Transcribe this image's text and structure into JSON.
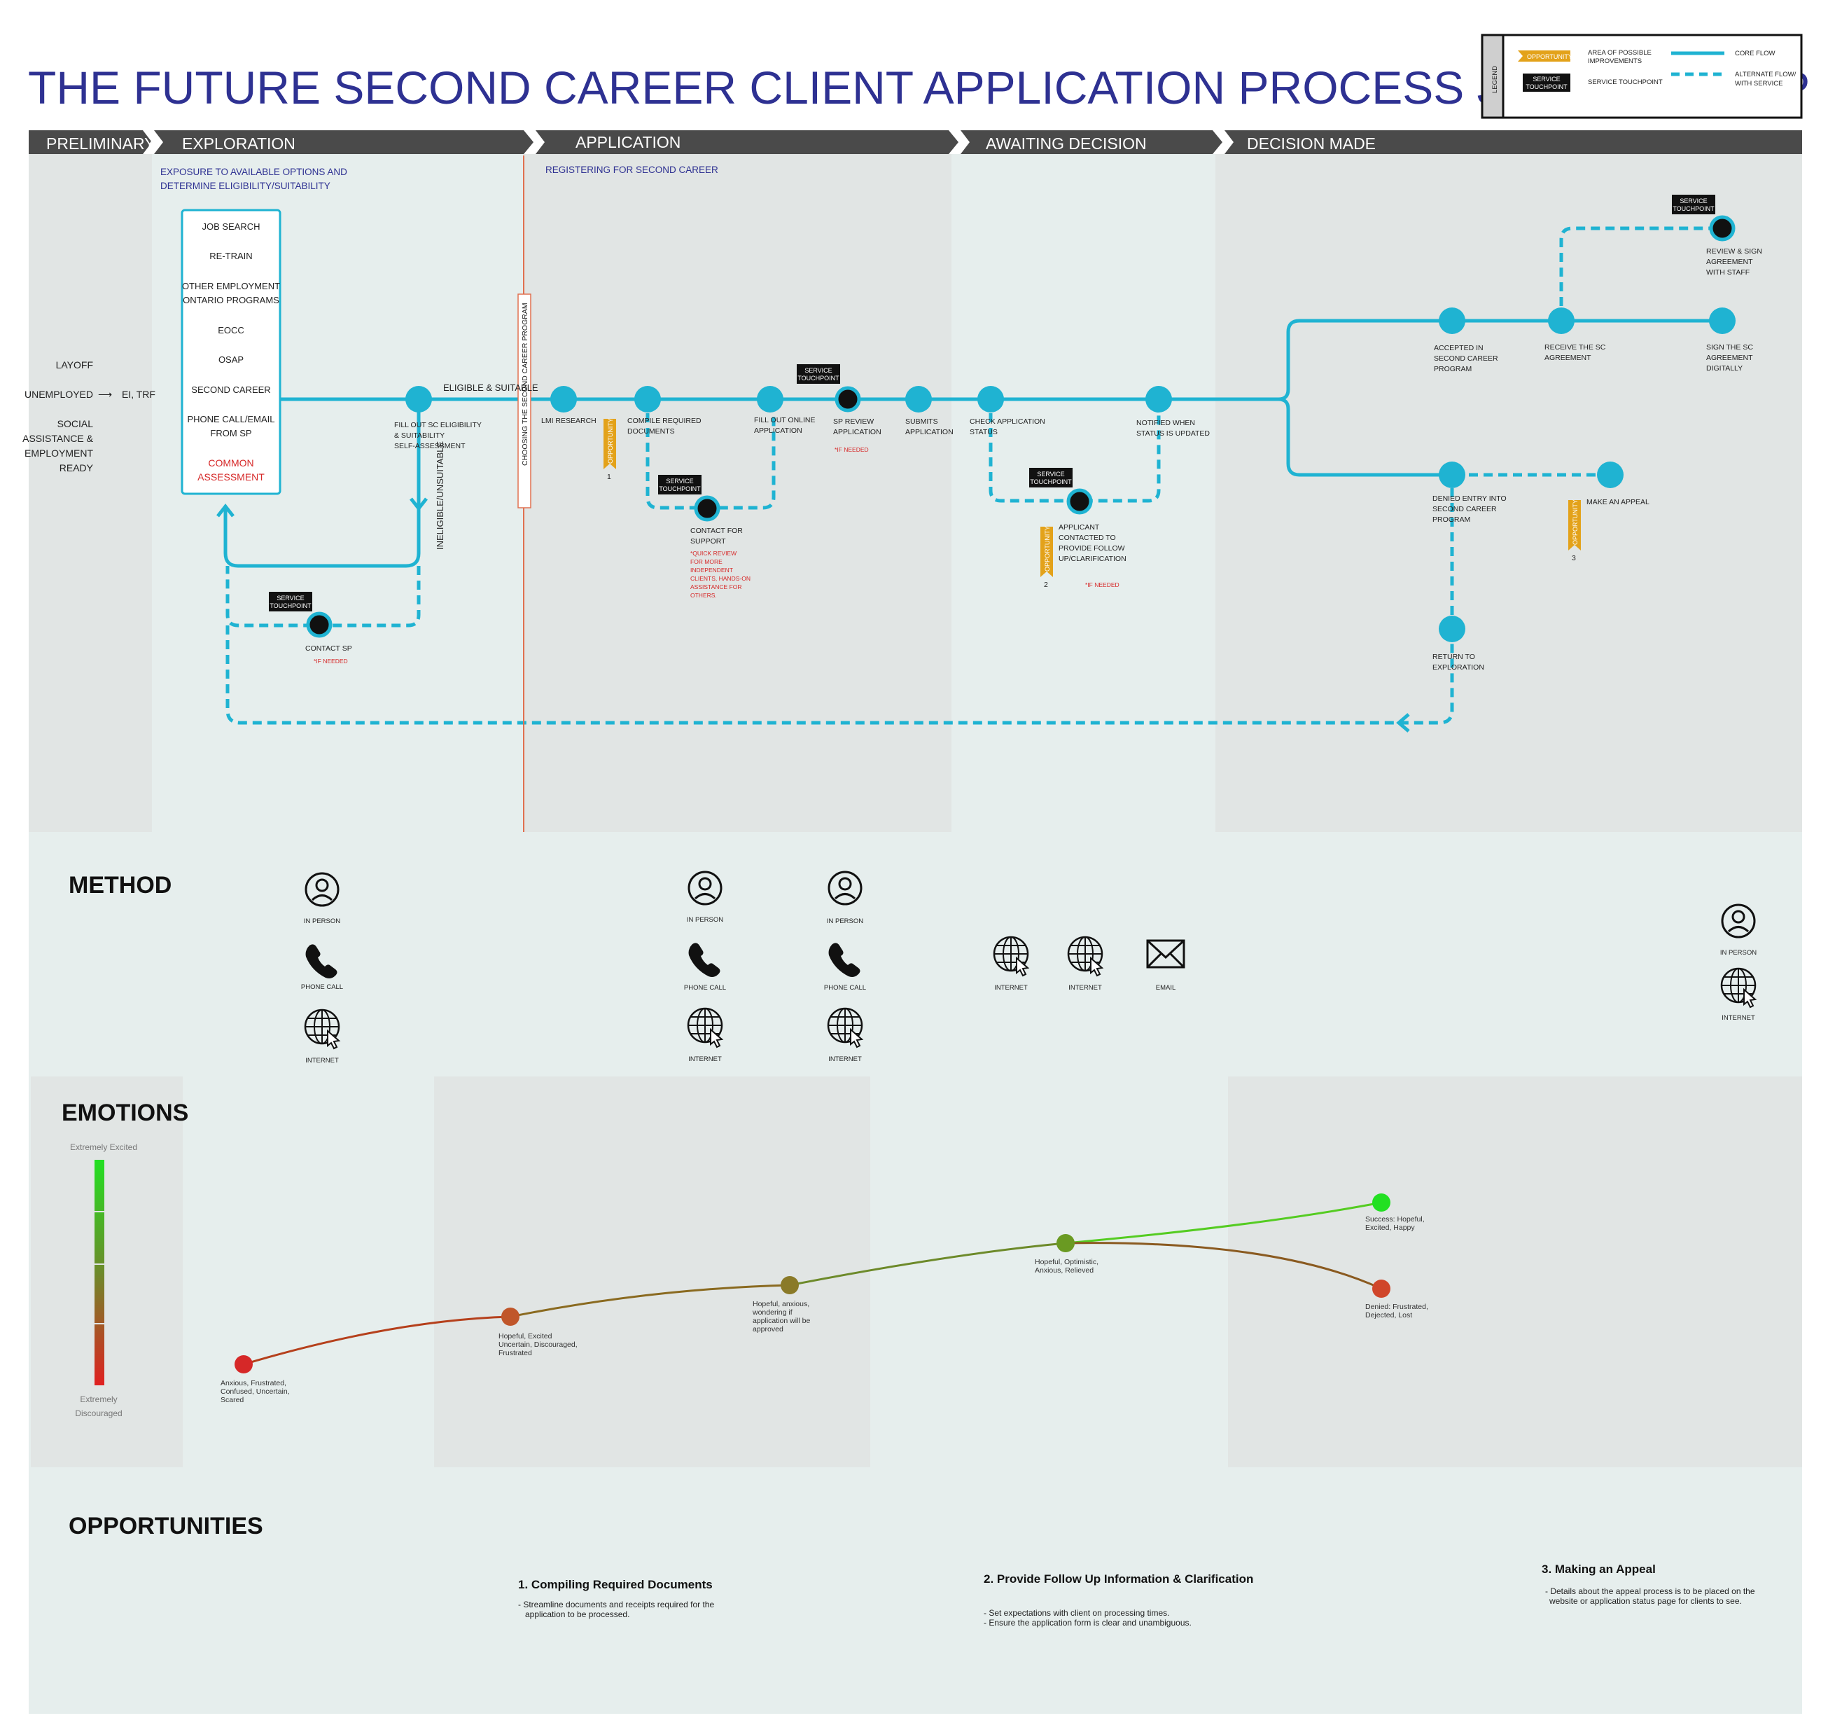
{
  "title": "THE FUTURE SECOND CAREER CLIENT APPLICATION PROCESS JOURNEY MAP",
  "legend": {
    "heading": "LEGEND",
    "opportunity_chip": "OPPORTUNITY",
    "opportunity_desc_1": "AREA OF POSSIBLE",
    "opportunity_desc_2": "IMPROVEMENTS",
    "touchpoint_chip_1": "SERVICE",
    "touchpoint_chip_2": "TOUCHPOINT",
    "touchpoint_desc": "SERVICE TOUCHPOINT",
    "core_flow": "CORE FLOW",
    "alt_flow_1": "ALTERNATE FLOW/",
    "alt_flow_2": "WITH SERVICE"
  },
  "phases": {
    "preliminary": "PRELIMINARY",
    "exploration": "EXPLORATION",
    "application": "APPLICATION",
    "awaiting": "AWAITING DECISION",
    "decision": "DECISION MADE"
  },
  "subtitles": {
    "exploration_1": "EXPOSURE TO AVAILABLE OPTIONS AND",
    "exploration_2": "DETERMINE ELIGIBILITY/SUITABILITY",
    "application": "REGISTERING FOR SECOND CAREER"
  },
  "preliminary": {
    "layoff": "LAYOFF",
    "unemployed": "UNEMPLOYED",
    "arrow": "⟶",
    "ei": "EI, TRF",
    "social_1": "SOCIAL",
    "social_2": "ASSISTANCE &",
    "social_3": "EMPLOYMENT",
    "social_4": "READY"
  },
  "options": {
    "job_search": "JOB SEARCH",
    "retrain": "RE-TRAIN",
    "other_1": "OTHER EMPLOYMENT",
    "other_2": "ONTARIO PROGRAMS",
    "eocc": "EOCC",
    "osap": "OSAP",
    "second_career": "SECOND CAREER",
    "phone_1": "PHONE CALL/EMAIL",
    "phone_2": "FROM SP",
    "common_1": "COMMON",
    "common_2": "ASSESSMENT"
  },
  "flow": {
    "eligible": "ELIGIBLE & SUITABLE",
    "ineligible": "INELIGIBLE/UNSUITABLE",
    "choosing": "CHOOSING THE SECOND CAREER PROGRAM",
    "fill_sc_1": "FILL OUT SC ELIGIBILITY",
    "fill_sc_2": "& SUITABILITY",
    "fill_sc_3": "SELF-ASSESSMENT",
    "contact_sp": "CONTACT SP",
    "if_needed": "*IF NEEDED",
    "lmi": "LMI RESEARCH",
    "compile_1": "COMPILE REQUIRED",
    "compile_2": "DOCUMENTS",
    "contact_support_1": "CONTACT FOR",
    "contact_support_2": "SUPPORT",
    "quick_1": "*QUICK REVIEW",
    "quick_2": "FOR MORE",
    "quick_3": "INDEPENDENT",
    "quick_4": "CLIENTS, HANDS-ON",
    "quick_5": "ASSISTANCE FOR",
    "quick_6": "OTHERS.",
    "fill_online_1": "FILL OUT ONLINE",
    "fill_online_2": "APPLICATION",
    "sp_review_1": "SP REVIEW",
    "sp_review_2": "APPLICATION",
    "submits_1": "SUBMITS",
    "submits_2": "APPLICATION",
    "check_1": "CHECK APPLICATION",
    "check_2": "STATUS",
    "notified_1": "NOTIFIED WHEN",
    "notified_2": "STATUS IS UPDATED",
    "contacted_1": "APPLICANT",
    "contacted_2": "CONTACTED TO",
    "contacted_3": "PROVIDE FOLLOW",
    "contacted_4": "UP/CLARIFICATION",
    "accepted_1": "ACCEPTED IN",
    "accepted_2": "SECOND CAREER",
    "accepted_3": "PROGRAM",
    "receive_1": "RECEIVE THE SC",
    "receive_2": "AGREEMENT",
    "sign_1": "SIGN THE SC",
    "sign_2": "AGREEMENT",
    "sign_3": "DIGITALLY",
    "review_1": "REVIEW & SIGN",
    "review_2": "AGREEMENT",
    "review_3": "WITH STAFF",
    "denied_1": "DENIED ENTRY INTO",
    "denied_2": "SECOND CAREER",
    "denied_3": "PROGRAM",
    "appeal": "MAKE AN APPEAL",
    "return_1": "RETURN TO",
    "return_2": "EXPLORATION",
    "st_1": "SERVICE",
    "st_2": "TOUCHPOINT",
    "opportunity": "OPPORTUNITY",
    "opp_num_1": "1",
    "opp_num_2": "2",
    "opp_num_3": "3"
  },
  "method": {
    "heading": "METHOD",
    "in_person": "IN PERSON",
    "phone_call": "PHONE CALL",
    "internet": "INTERNET",
    "email": "EMAIL"
  },
  "emotions": {
    "heading": "EMOTIONS",
    "top": "Extremely Excited",
    "bottom_1": "Extremely",
    "bottom_2": "Discouraged",
    "p1_1": "Anxious, Frustrated,",
    "p1_2": "Confused, Uncertain,",
    "p1_3": "Scared",
    "p2_1": "Hopeful, Excited",
    "p2_2": "Uncertain, Discouraged,",
    "p2_3": "Frustrated",
    "p3_1": "Hopeful, anxious,",
    "p3_2": "wondering if",
    "p3_3": "application will be",
    "p3_4": "approved",
    "p4_1": "Hopeful, Optimistic,",
    "p4_2": "Anxious, Relieved",
    "p5_1": "Success: Hopeful,",
    "p5_2": "Excited, Happy",
    "p6_1": "Denied: Frustrated,",
    "p6_2": "Dejected, Lost"
  },
  "opportunities": {
    "heading": "OPPORTUNITIES",
    "o1_title": "1. Compiling Required Documents",
    "o1_l1": "- Streamline documents and receipts required for the",
    "o1_l2": "application to be processed.",
    "o2_title": "2. Provide Follow Up Information & Clarification",
    "o2_l1": "- Set expectations with client on processing times.",
    "o2_l2": "- Ensure the application form is clear and unambiguous.",
    "o3_title": "3. Making an Appeal",
    "o3_l1": "- Details about the appeal process is to be placed on the",
    "o3_l2": "website or application status page for clients to see."
  },
  "colors": {
    "title": "#2e3192",
    "core_flow": "#1fb3d2",
    "phase_bar": "#4a4a4a",
    "opportunity": "#e3a21a",
    "red": "#d62828",
    "band_light": "#e6eeed",
    "band_dark": "#e1e5e4"
  }
}
